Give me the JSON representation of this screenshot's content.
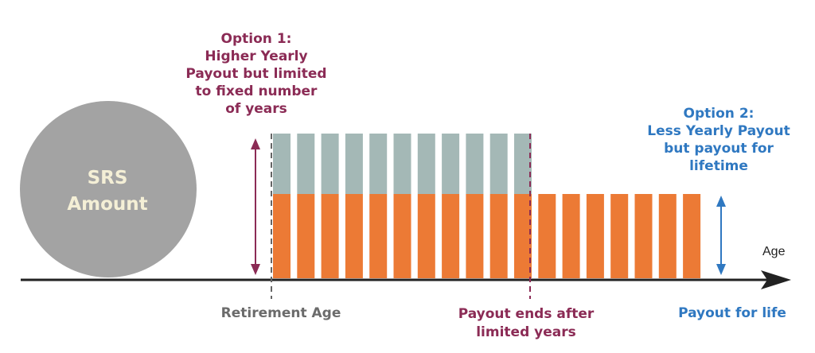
{
  "circle": {
    "lines": [
      "SRS",
      "Amount"
    ]
  },
  "option1": {
    "lines": [
      "Option 1:",
      "Higher Yearly",
      "Payout but limited",
      "to fixed number",
      "of years"
    ]
  },
  "option2": {
    "lines": [
      "Option 2:",
      "Less Yearly Payout",
      "but payout for",
      "lifetime"
    ]
  },
  "axis": {
    "label": "Age"
  },
  "markers": {
    "retirement": "Retirement Age",
    "payout_ends": [
      "Payout ends after",
      "limited years"
    ],
    "payout_life": "Payout for life"
  },
  "bars": {
    "option1_count": 11,
    "option2_count": 7
  },
  "colors": {
    "circle": "#a3a3a3",
    "orange": "#ec7a35",
    "grey_top": "#a4b8b6",
    "option1": "#8b2b55",
    "option2": "#2f78c1",
    "axis": "#222222"
  }
}
